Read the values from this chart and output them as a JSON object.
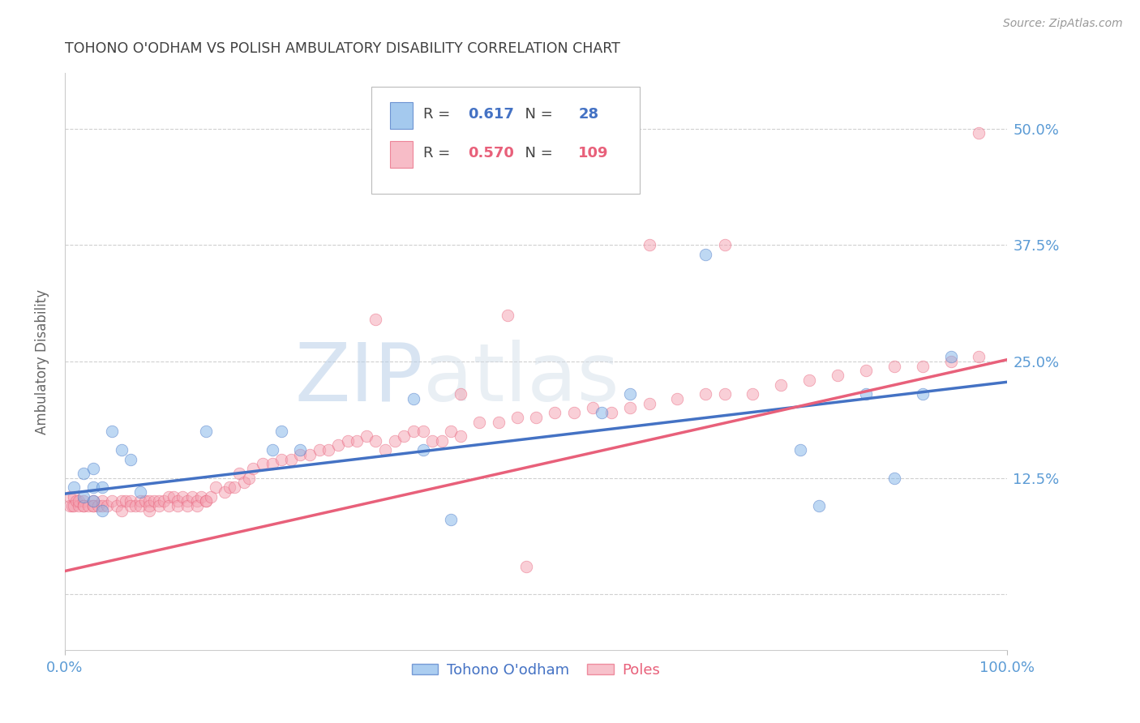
{
  "title": "TOHONO O'ODHAM VS POLISH AMBULATORY DISABILITY CORRELATION CHART",
  "source": "Source: ZipAtlas.com",
  "ylabel": "Ambulatory Disability",
  "yticks": [
    0.0,
    0.125,
    0.25,
    0.375,
    0.5
  ],
  "ytick_labels": [
    "",
    "12.5%",
    "25.0%",
    "37.5%",
    "50.0%"
  ],
  "xlim": [
    0.0,
    1.0
  ],
  "ylim": [
    -0.06,
    0.56
  ],
  "legend_blue_R": "0.617",
  "legend_blue_N": "28",
  "legend_pink_R": "0.570",
  "legend_pink_N": "109",
  "legend_label_blue": "Tohono O'odham",
  "legend_label_pink": "Poles",
  "blue_color": "#7EB3E8",
  "pink_color": "#F4A0B0",
  "blue_line_color": "#4472C4",
  "pink_line_color": "#E8607A",
  "background_color": "#ffffff",
  "title_color": "#404040",
  "axis_label_color": "#666666",
  "tick_label_color": "#5B9BD5",
  "grid_color": "#d0d0d0",
  "blue_scatter_x": [
    0.01,
    0.02,
    0.02,
    0.03,
    0.03,
    0.03,
    0.04,
    0.04,
    0.05,
    0.06,
    0.07,
    0.08,
    0.15,
    0.22,
    0.23,
    0.25,
    0.37,
    0.38,
    0.41,
    0.57,
    0.6,
    0.68,
    0.78,
    0.8,
    0.85,
    0.88,
    0.91,
    0.94
  ],
  "blue_scatter_y": [
    0.115,
    0.13,
    0.105,
    0.115,
    0.135,
    0.1,
    0.09,
    0.115,
    0.175,
    0.155,
    0.145,
    0.11,
    0.175,
    0.155,
    0.175,
    0.155,
    0.21,
    0.155,
    0.08,
    0.195,
    0.215,
    0.365,
    0.155,
    0.095,
    0.215,
    0.125,
    0.215,
    0.255
  ],
  "pink_scatter_x": [
    0.005,
    0.005,
    0.008,
    0.01,
    0.01,
    0.012,
    0.015,
    0.015,
    0.02,
    0.02,
    0.02,
    0.025,
    0.03,
    0.03,
    0.03,
    0.035,
    0.04,
    0.04,
    0.045,
    0.05,
    0.055,
    0.06,
    0.06,
    0.065,
    0.07,
    0.07,
    0.075,
    0.08,
    0.08,
    0.085,
    0.09,
    0.09,
    0.09,
    0.095,
    0.1,
    0.1,
    0.105,
    0.11,
    0.11,
    0.115,
    0.12,
    0.12,
    0.125,
    0.13,
    0.13,
    0.135,
    0.14,
    0.14,
    0.145,
    0.15,
    0.15,
    0.155,
    0.16,
    0.17,
    0.175,
    0.18,
    0.185,
    0.19,
    0.195,
    0.2,
    0.21,
    0.22,
    0.23,
    0.24,
    0.25,
    0.26,
    0.27,
    0.28,
    0.29,
    0.3,
    0.31,
    0.32,
    0.33,
    0.34,
    0.35,
    0.36,
    0.37,
    0.38,
    0.39,
    0.4,
    0.41,
    0.42,
    0.44,
    0.46,
    0.48,
    0.5,
    0.52,
    0.54,
    0.56,
    0.58,
    0.6,
    0.62,
    0.65,
    0.68,
    0.7,
    0.73,
    0.76,
    0.79,
    0.82,
    0.85,
    0.88,
    0.91,
    0.94,
    0.97,
    0.33,
    0.42,
    0.47,
    0.49,
    0.62,
    0.7,
    0.97
  ],
  "pink_scatter_y": [
    0.105,
    0.095,
    0.095,
    0.105,
    0.095,
    0.1,
    0.095,
    0.1,
    0.1,
    0.095,
    0.095,
    0.095,
    0.1,
    0.095,
    0.095,
    0.095,
    0.1,
    0.095,
    0.095,
    0.1,
    0.095,
    0.1,
    0.09,
    0.1,
    0.1,
    0.095,
    0.095,
    0.1,
    0.095,
    0.1,
    0.1,
    0.09,
    0.095,
    0.1,
    0.1,
    0.095,
    0.1,
    0.105,
    0.095,
    0.105,
    0.1,
    0.095,
    0.105,
    0.1,
    0.095,
    0.105,
    0.1,
    0.095,
    0.105,
    0.1,
    0.1,
    0.105,
    0.115,
    0.11,
    0.115,
    0.115,
    0.13,
    0.12,
    0.125,
    0.135,
    0.14,
    0.14,
    0.145,
    0.145,
    0.15,
    0.15,
    0.155,
    0.155,
    0.16,
    0.165,
    0.165,
    0.17,
    0.165,
    0.155,
    0.165,
    0.17,
    0.175,
    0.175,
    0.165,
    0.165,
    0.175,
    0.17,
    0.185,
    0.185,
    0.19,
    0.19,
    0.195,
    0.195,
    0.2,
    0.195,
    0.2,
    0.205,
    0.21,
    0.215,
    0.215,
    0.215,
    0.225,
    0.23,
    0.235,
    0.24,
    0.245,
    0.245,
    0.25,
    0.255,
    0.295,
    0.215,
    0.3,
    0.03,
    0.375,
    0.375,
    0.495
  ],
  "blue_line_x0": 0.0,
  "blue_line_y0": 0.108,
  "blue_line_x1": 1.0,
  "blue_line_y1": 0.228,
  "pink_line_x0": 0.0,
  "pink_line_y0": 0.025,
  "pink_line_x1": 1.0,
  "pink_line_y1": 0.252
}
